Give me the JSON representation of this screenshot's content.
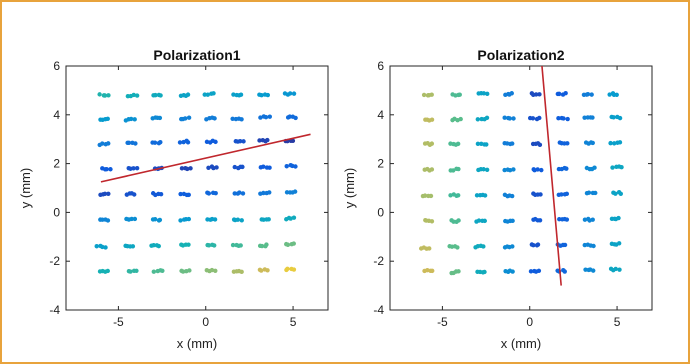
{
  "chart_data": [
    {
      "type": "scatter",
      "title": "Polarization1",
      "xlabel": "x (mm)",
      "ylabel": "y (mm)",
      "xlim": [
        -8,
        7
      ],
      "ylim": [
        -4,
        6
      ],
      "xticks": [
        -5,
        0,
        5
      ],
      "yticks": [
        -4,
        -2,
        0,
        2,
        4,
        6
      ],
      "xtick_labels": [
        "-5",
        "0",
        "5"
      ],
      "ytick_labels": [
        "-4",
        "-2",
        "0",
        "2",
        "4",
        "6"
      ],
      "grid": false,
      "colormap": "parula",
      "color_value_range": [
        0,
        1
      ],
      "points": [
        {
          "x": -5.8,
          "y": 4.8,
          "c": 0.62
        },
        {
          "x": -4.2,
          "y": 4.8,
          "c": 0.58
        },
        {
          "x": -2.8,
          "y": 4.8,
          "c": 0.55
        },
        {
          "x": -1.2,
          "y": 4.8,
          "c": 0.5
        },
        {
          "x": 0.2,
          "y": 4.85,
          "c": 0.5
        },
        {
          "x": 1.8,
          "y": 4.8,
          "c": 0.48
        },
        {
          "x": 3.3,
          "y": 4.8,
          "c": 0.45
        },
        {
          "x": 4.8,
          "y": 4.85,
          "c": 0.42
        },
        {
          "x": -5.8,
          "y": 3.8,
          "c": 0.45
        },
        {
          "x": -4.3,
          "y": 3.8,
          "c": 0.4
        },
        {
          "x": -2.8,
          "y": 3.85,
          "c": 0.36
        },
        {
          "x": -1.2,
          "y": 3.85,
          "c": 0.32
        },
        {
          "x": 0.3,
          "y": 3.85,
          "c": 0.3
        },
        {
          "x": 1.8,
          "y": 3.85,
          "c": 0.28
        },
        {
          "x": 3.4,
          "y": 3.9,
          "c": 0.25
        },
        {
          "x": 4.9,
          "y": 3.9,
          "c": 0.22
        },
        {
          "x": -5.8,
          "y": 2.8,
          "c": 0.3
        },
        {
          "x": -4.3,
          "y": 2.85,
          "c": 0.26
        },
        {
          "x": -2.8,
          "y": 2.85,
          "c": 0.22
        },
        {
          "x": -1.2,
          "y": 2.9,
          "c": 0.18
        },
        {
          "x": 0.3,
          "y": 2.9,
          "c": 0.15
        },
        {
          "x": 1.9,
          "y": 2.9,
          "c": 0.12
        },
        {
          "x": 3.3,
          "y": 2.95,
          "c": 0.08
        },
        {
          "x": 4.8,
          "y": 2.95,
          "c": 0.05
        },
        {
          "x": -5.7,
          "y": 1.8,
          "c": 0.15
        },
        {
          "x": -4.2,
          "y": 1.8,
          "c": 0.12
        },
        {
          "x": -2.7,
          "y": 1.8,
          "c": 0.1
        },
        {
          "x": -1.1,
          "y": 1.8,
          "c": 0.08
        },
        {
          "x": 0.4,
          "y": 1.85,
          "c": 0.1
        },
        {
          "x": 1.9,
          "y": 1.85,
          "c": 0.12
        },
        {
          "x": 3.4,
          "y": 1.85,
          "c": 0.15
        },
        {
          "x": 4.9,
          "y": 1.9,
          "c": 0.18
        },
        {
          "x": -5.8,
          "y": 0.75,
          "c": 0.1
        },
        {
          "x": -4.3,
          "y": 0.75,
          "c": 0.12
        },
        {
          "x": -2.8,
          "y": 0.75,
          "c": 0.14
        },
        {
          "x": -1.2,
          "y": 0.75,
          "c": 0.16
        },
        {
          "x": 0.3,
          "y": 0.8,
          "c": 0.2
        },
        {
          "x": 1.9,
          "y": 0.8,
          "c": 0.24
        },
        {
          "x": 3.4,
          "y": 0.8,
          "c": 0.28
        },
        {
          "x": 4.9,
          "y": 0.85,
          "c": 0.32
        },
        {
          "x": -5.8,
          "y": -0.3,
          "c": 0.34
        },
        {
          "x": -4.3,
          "y": -0.3,
          "c": 0.38
        },
        {
          "x": -2.8,
          "y": -0.3,
          "c": 0.4
        },
        {
          "x": -1.2,
          "y": -0.3,
          "c": 0.44
        },
        {
          "x": 0.3,
          "y": -0.3,
          "c": 0.48
        },
        {
          "x": 1.8,
          "y": -0.3,
          "c": 0.5
        },
        {
          "x": 3.4,
          "y": -0.3,
          "c": 0.52
        },
        {
          "x": 4.8,
          "y": -0.25,
          "c": 0.55
        },
        {
          "x": -6.0,
          "y": -1.4,
          "c": 0.48
        },
        {
          "x": -4.4,
          "y": -1.4,
          "c": 0.52
        },
        {
          "x": -2.9,
          "y": -1.35,
          "c": 0.56
        },
        {
          "x": -1.2,
          "y": -1.35,
          "c": 0.6
        },
        {
          "x": 0.3,
          "y": -1.35,
          "c": 0.64
        },
        {
          "x": 1.8,
          "y": -1.35,
          "c": 0.68
        },
        {
          "x": 3.3,
          "y": -1.35,
          "c": 0.72
        },
        {
          "x": 4.8,
          "y": -1.3,
          "c": 0.75
        },
        {
          "x": -5.8,
          "y": -2.4,
          "c": 0.6
        },
        {
          "x": -4.2,
          "y": -2.4,
          "c": 0.65
        },
        {
          "x": -2.7,
          "y": -2.4,
          "c": 0.7
        },
        {
          "x": -1.2,
          "y": -2.4,
          "c": 0.75
        },
        {
          "x": 0.3,
          "y": -2.4,
          "c": 0.8
        },
        {
          "x": 1.8,
          "y": -2.4,
          "c": 0.85
        },
        {
          "x": 3.3,
          "y": -2.35,
          "c": 0.9
        },
        {
          "x": 4.8,
          "y": -2.35,
          "c": 0.95
        }
      ],
      "fit_line": {
        "x": [
          -6,
          6
        ],
        "y": [
          1.25,
          3.2
        ],
        "color": "#c0272d"
      }
    },
    {
      "type": "scatter",
      "title": "Polarization2",
      "xlabel": "x (mm)",
      "ylabel": "y (mm)",
      "xlim": [
        -8,
        7
      ],
      "ylim": [
        -4,
        6
      ],
      "xticks": [
        -5,
        0,
        5
      ],
      "yticks": [
        -4,
        -2,
        0,
        2,
        4,
        6
      ],
      "xtick_labels": [
        "-5",
        "0",
        "5"
      ],
      "ytick_labels": [
        "-4",
        "-2",
        "0",
        "2",
        "4",
        "6"
      ],
      "grid": false,
      "colormap": "parula",
      "color_value_range": [
        0,
        1
      ],
      "points": [
        {
          "x": -5.8,
          "y": 4.8,
          "c": 0.85
        },
        {
          "x": -4.2,
          "y": 4.8,
          "c": 0.7
        },
        {
          "x": -2.7,
          "y": 4.85,
          "c": 0.5
        },
        {
          "x": -1.2,
          "y": 4.85,
          "c": 0.3
        },
        {
          "x": 0.3,
          "y": 4.85,
          "c": 0.1
        },
        {
          "x": 1.8,
          "y": 4.85,
          "c": 0.15
        },
        {
          "x": 3.3,
          "y": 4.85,
          "c": 0.3
        },
        {
          "x": 4.8,
          "y": 4.85,
          "c": 0.45
        },
        {
          "x": -5.8,
          "y": 3.8,
          "c": 0.88
        },
        {
          "x": -4.2,
          "y": 3.8,
          "c": 0.72
        },
        {
          "x": -2.7,
          "y": 3.85,
          "c": 0.52
        },
        {
          "x": -1.2,
          "y": 3.85,
          "c": 0.32
        },
        {
          "x": 0.3,
          "y": 3.85,
          "c": 0.12
        },
        {
          "x": 1.9,
          "y": 3.85,
          "c": 0.16
        },
        {
          "x": 3.4,
          "y": 3.9,
          "c": 0.32
        },
        {
          "x": 4.9,
          "y": 3.9,
          "c": 0.47
        },
        {
          "x": -5.8,
          "y": 2.8,
          "c": 0.86
        },
        {
          "x": -4.3,
          "y": 2.8,
          "c": 0.7
        },
        {
          "x": -2.7,
          "y": 2.8,
          "c": 0.5
        },
        {
          "x": -1.2,
          "y": 2.8,
          "c": 0.3
        },
        {
          "x": 0.4,
          "y": 2.8,
          "c": 0.1
        },
        {
          "x": 1.9,
          "y": 2.85,
          "c": 0.18
        },
        {
          "x": 3.4,
          "y": 2.85,
          "c": 0.33
        },
        {
          "x": 4.9,
          "y": 2.85,
          "c": 0.48
        },
        {
          "x": -5.8,
          "y": 1.75,
          "c": 0.85
        },
        {
          "x": -4.3,
          "y": 1.75,
          "c": 0.7
        },
        {
          "x": -2.7,
          "y": 1.75,
          "c": 0.52
        },
        {
          "x": -1.2,
          "y": 1.75,
          "c": 0.35
        },
        {
          "x": 0.4,
          "y": 1.75,
          "c": 0.15
        },
        {
          "x": 1.9,
          "y": 1.8,
          "c": 0.2
        },
        {
          "x": 3.5,
          "y": 1.8,
          "c": 0.36
        },
        {
          "x": 5.0,
          "y": 1.85,
          "c": 0.52
        },
        {
          "x": -5.9,
          "y": 0.7,
          "c": 0.84
        },
        {
          "x": -4.3,
          "y": 0.7,
          "c": 0.68
        },
        {
          "x": -2.8,
          "y": 0.7,
          "c": 0.5
        },
        {
          "x": -1.2,
          "y": 0.7,
          "c": 0.32
        },
        {
          "x": 0.4,
          "y": 0.75,
          "c": 0.12
        },
        {
          "x": 1.9,
          "y": 0.75,
          "c": 0.18
        },
        {
          "x": 3.5,
          "y": 0.8,
          "c": 0.34
        },
        {
          "x": 5.0,
          "y": 0.8,
          "c": 0.5
        },
        {
          "x": -5.8,
          "y": -0.35,
          "c": 0.86
        },
        {
          "x": -4.3,
          "y": -0.35,
          "c": 0.7
        },
        {
          "x": -2.8,
          "y": -0.35,
          "c": 0.52
        },
        {
          "x": -1.2,
          "y": -0.35,
          "c": 0.34
        },
        {
          "x": 0.4,
          "y": -0.3,
          "c": 0.14
        },
        {
          "x": 1.9,
          "y": -0.3,
          "c": 0.18
        },
        {
          "x": 3.4,
          "y": -0.3,
          "c": 0.34
        },
        {
          "x": 4.9,
          "y": -0.25,
          "c": 0.5
        },
        {
          "x": -6.0,
          "y": -1.45,
          "c": 0.88
        },
        {
          "x": -4.4,
          "y": -1.4,
          "c": 0.72
        },
        {
          "x": -2.9,
          "y": -1.4,
          "c": 0.55
        },
        {
          "x": -1.2,
          "y": -1.4,
          "c": 0.36
        },
        {
          "x": 0.3,
          "y": -1.35,
          "c": 0.12
        },
        {
          "x": 1.8,
          "y": -1.35,
          "c": 0.18
        },
        {
          "x": 3.4,
          "y": -1.35,
          "c": 0.34
        },
        {
          "x": 4.9,
          "y": -1.3,
          "c": 0.5
        },
        {
          "x": -5.8,
          "y": -2.4,
          "c": 0.9
        },
        {
          "x": -4.3,
          "y": -2.45,
          "c": 0.74
        },
        {
          "x": -2.8,
          "y": -2.45,
          "c": 0.56
        },
        {
          "x": -1.2,
          "y": -2.4,
          "c": 0.38
        },
        {
          "x": 0.3,
          "y": -2.4,
          "c": 0.15
        },
        {
          "x": 1.8,
          "y": -2.4,
          "c": 0.2
        },
        {
          "x": 3.4,
          "y": -2.35,
          "c": 0.36
        },
        {
          "x": 4.9,
          "y": -2.35,
          "c": 0.52
        }
      ],
      "fit_line": {
        "x": [
          0.7,
          1.8
        ],
        "y": [
          6.0,
          -3.0
        ],
        "color": "#c0272d"
      }
    }
  ]
}
